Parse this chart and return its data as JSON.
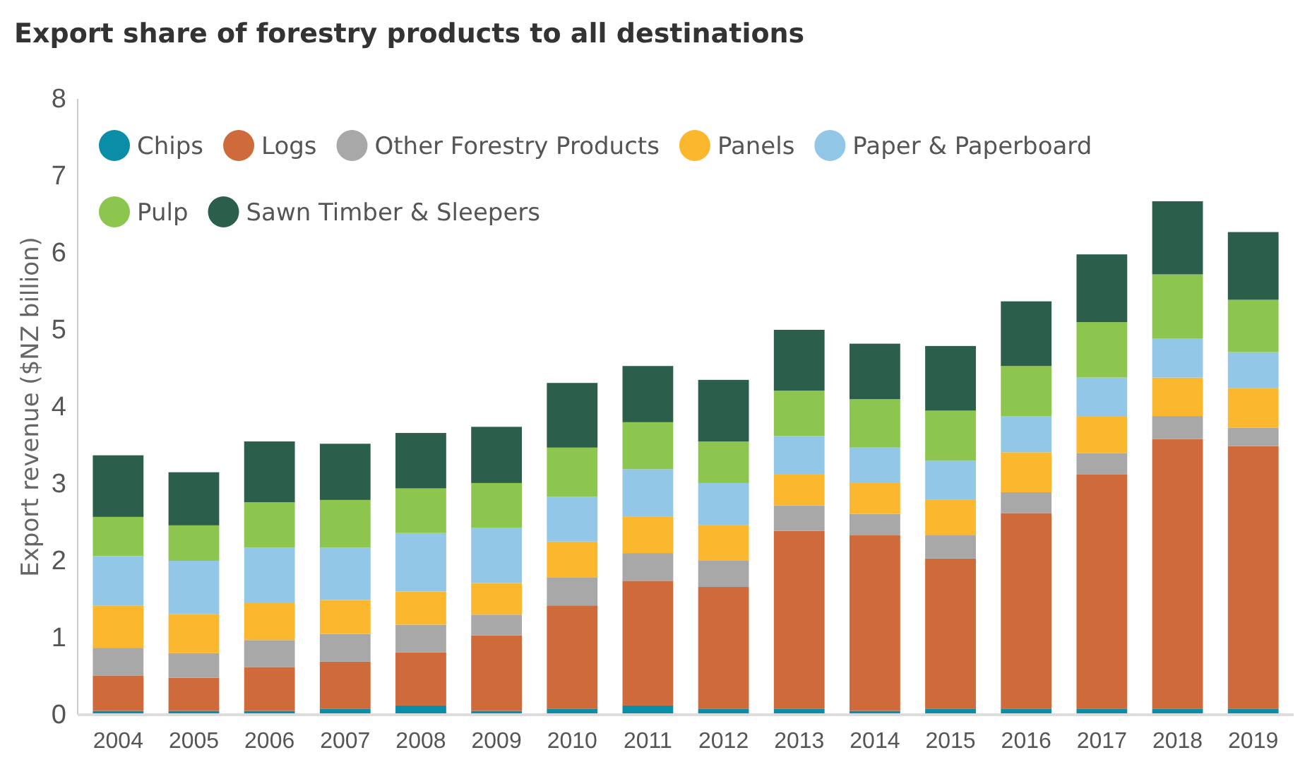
{
  "chart_data": {
    "type": "bar",
    "title": "Export share of forestry products to all destinations",
    "ylabel": "Export revenue ($NZ billion)",
    "categories": [
      "2004",
      "2005",
      "2006",
      "2007",
      "2008",
      "2009",
      "2010",
      "2011",
      "2012",
      "2013",
      "2014",
      "2015",
      "2016",
      "2017",
      "2018",
      "2019"
    ],
    "stacked": true,
    "ylim": [
      0,
      8
    ],
    "yticks": [
      0,
      1,
      2,
      3,
      4,
      5,
      6,
      7,
      8
    ],
    "grid": false,
    "legend": "top left",
    "series": [
      {
        "name": "Chips",
        "color": "#0a8ea8",
        "values": [
          0.05,
          0.05,
          0.05,
          0.08,
          0.12,
          0.05,
          0.08,
          0.12,
          0.08,
          0.08,
          0.05,
          0.08,
          0.08,
          0.08,
          0.08,
          0.08
        ]
      },
      {
        "name": "Logs",
        "color": "#cf6a3a",
        "values": [
          0.46,
          0.43,
          0.57,
          0.61,
          0.69,
          0.98,
          1.34,
          1.62,
          1.58,
          2.31,
          2.28,
          1.95,
          2.54,
          3.04,
          3.5,
          3.41
        ]
      },
      {
        "name": "Other Forestry Products",
        "color": "#a8a8a8",
        "values": [
          0.36,
          0.32,
          0.35,
          0.36,
          0.36,
          0.27,
          0.36,
          0.36,
          0.34,
          0.33,
          0.28,
          0.3,
          0.27,
          0.28,
          0.3,
          0.24
        ]
      },
      {
        "name": "Panels",
        "color": "#fbb82f",
        "values": [
          0.55,
          0.51,
          0.48,
          0.44,
          0.43,
          0.41,
          0.47,
          0.47,
          0.46,
          0.4,
          0.4,
          0.46,
          0.52,
          0.48,
          0.5,
          0.51
        ]
      },
      {
        "name": "Paper & Paperboard",
        "color": "#92c7e7",
        "values": [
          0.64,
          0.69,
          0.72,
          0.68,
          0.76,
          0.72,
          0.58,
          0.62,
          0.55,
          0.5,
          0.46,
          0.51,
          0.47,
          0.5,
          0.51,
          0.47
        ]
      },
      {
        "name": "Pulp",
        "color": "#8dc64e",
        "values": [
          0.51,
          0.46,
          0.59,
          0.62,
          0.58,
          0.58,
          0.64,
          0.61,
          0.54,
          0.59,
          0.63,
          0.65,
          0.65,
          0.72,
          0.83,
          0.68
        ]
      },
      {
        "name": "Sawn Timber & Sleepers",
        "color": "#2b5e4b",
        "values": [
          0.8,
          0.69,
          0.79,
          0.73,
          0.72,
          0.73,
          0.84,
          0.73,
          0.8,
          0.79,
          0.72,
          0.84,
          0.84,
          0.88,
          0.95,
          0.88
        ]
      }
    ]
  }
}
